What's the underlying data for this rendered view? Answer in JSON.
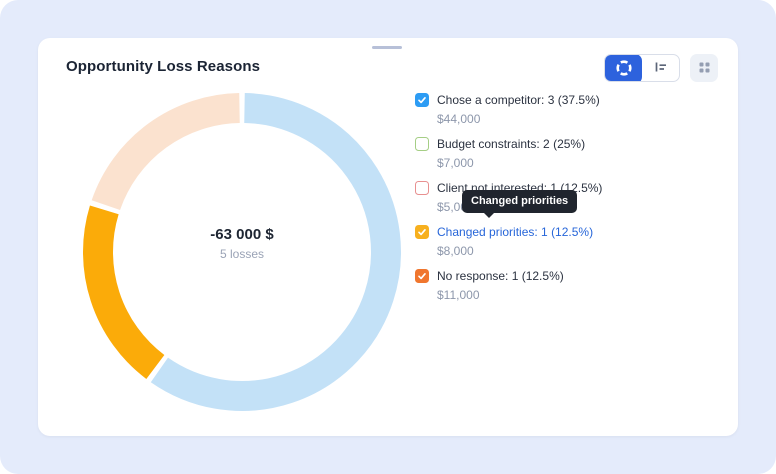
{
  "card": {
    "title": "Opportunity Loss Reasons",
    "center": {
      "total": "-63 000 $",
      "subtitle": "5 losses"
    },
    "tooltip": {
      "text": "Changed priorities"
    },
    "toolbar": {
      "donut_view_icon": "donut-chart-icon",
      "bars_view_icon": "bar-list-icon",
      "drag_grid_icon": "grid-handle-icon",
      "active_color": "#2d62dd"
    },
    "legend": [
      {
        "label": "Chose a competitor: 3 (37.5%)",
        "amount": "$44,000",
        "checked": true,
        "hovered": false,
        "color": "#2d9cf4"
      },
      {
        "label": "Budget constraints: 2 (25%)",
        "amount": "$7,000",
        "checked": false,
        "hovered": false,
        "color": "#a5ce85"
      },
      {
        "label": "Client not interested: 1 (12.5%)",
        "amount": "$5,000",
        "checked": false,
        "hovered": false,
        "color": "#e89090"
      },
      {
        "label": "Changed priorities: 1 (12.5%)",
        "amount": "$8,000",
        "checked": true,
        "hovered": true,
        "color": "#f7b01e"
      },
      {
        "label": "No response: 1 (12.5%)",
        "amount": "$11,000",
        "checked": true,
        "hovered": false,
        "color": "#f0762e"
      }
    ]
  },
  "chart_data": {
    "type": "pie",
    "title": "Opportunity Loss Reasons",
    "center_label": "-63 000 $",
    "center_sublabel": "5 losses",
    "legend_position": "right",
    "donut": {
      "outer_radius": 159,
      "stroke_width": 30,
      "pad_angle_deg": 1.0,
      "start_angle_deg": 0,
      "clockwise": true
    },
    "segments": [
      {
        "label": "Chose a competitor",
        "count": 3,
        "pct_of_all": 37.5,
        "amount_usd": 44000,
        "visible_share_pct": 60,
        "color": "#c3e1f7",
        "hovered": false
      },
      {
        "label": "Changed priorities",
        "count": 1,
        "pct_of_all": 12.5,
        "amount_usd": 8000,
        "visible_share_pct": 20,
        "color": "#fbab09",
        "hovered": true
      },
      {
        "label": "No response",
        "count": 1,
        "pct_of_all": 12.5,
        "amount_usd": 11000,
        "visible_share_pct": 20,
        "color": "#fbe2cf",
        "hovered": false
      }
    ],
    "excluded_unchecked": [
      {
        "label": "Budget constraints",
        "count": 2,
        "pct_of_all": 25,
        "amount_usd": 7000
      },
      {
        "label": "Client not interested",
        "count": 1,
        "pct_of_all": 12.5,
        "amount_usd": 5000
      }
    ]
  }
}
